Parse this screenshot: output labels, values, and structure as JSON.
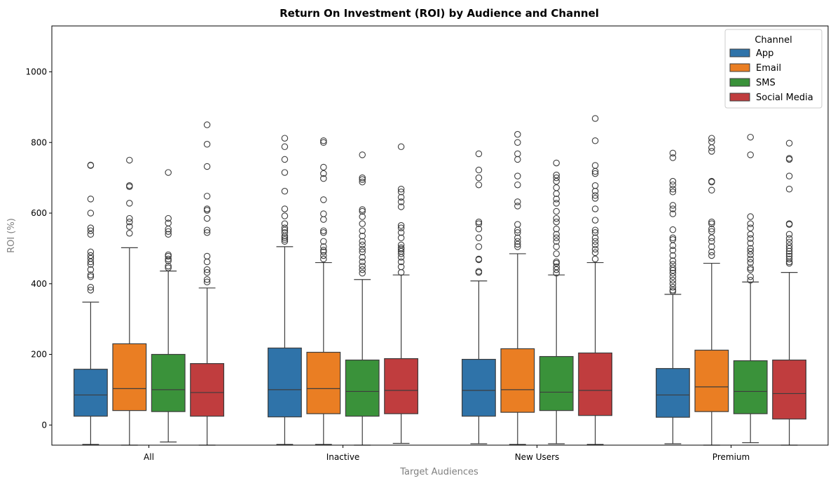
{
  "chart_data": {
    "type": "boxplot",
    "title": "Return On Investment (ROI) by Audience and Channel",
    "xlabel": "Target Audiences",
    "ylabel": "ROI (%)",
    "ylim": [
      -57,
      1130
    ],
    "yticks": [
      0,
      200,
      400,
      600,
      800,
      1000
    ],
    "categories": [
      "All",
      "Inactive",
      "New Users",
      "Premium"
    ],
    "legend": {
      "title": "Channel",
      "position": "top-right"
    },
    "series": [
      {
        "name": "App",
        "color": "#2f73a9",
        "boxes": [
          {
            "whisker_low": -55,
            "q1": 25,
            "median": 85,
            "q3": 158,
            "whisker_high": 348,
            "outliers": [
              382,
              390,
              420,
              425,
              440,
              455,
              462,
              472,
              480,
              490,
              540,
              550,
              558,
              600,
              640,
              735,
              736
            ]
          },
          {
            "whisker_low": -55,
            "q1": 23,
            "median": 100,
            "q3": 218,
            "whisker_high": 505,
            "outliers": [
              520,
              525,
              530,
              535,
              545,
              552,
              558,
              570,
              592,
              612,
              662,
              715,
              752,
              788,
              812
            ]
          },
          {
            "whisker_low": -53,
            "q1": 25,
            "median": 98,
            "q3": 186,
            "whisker_high": 408,
            "outliers": [
              432,
              435,
              468,
              470,
              505,
              530,
              555,
              570,
              575,
              680,
              700,
              722,
              768
            ]
          },
          {
            "whisker_low": -53,
            "q1": 22,
            "median": 85,
            "q3": 160,
            "whisker_high": 370,
            "outliers": [
              378,
              382,
              390,
              400,
              410,
              420,
              430,
              438,
              445,
              455,
              465,
              480,
              495,
              508,
              525,
              530,
              553,
              598,
              612,
              622,
              660,
              668,
              680,
              690,
              757,
              770
            ]
          }
        ]
      },
      {
        "name": "Email",
        "color": "#ea7e23",
        "boxes": [
          {
            "whisker_low": -57,
            "q1": 41,
            "median": 103,
            "q3": 230,
            "whisker_high": 502,
            "outliers": [
              543,
              562,
              575,
              585,
              628,
              675,
              678,
              750
            ]
          },
          {
            "whisker_low": -55,
            "q1": 32,
            "median": 103,
            "q3": 206,
            "whisker_high": 460,
            "outliers": [
              470,
              480,
              490,
              495,
              505,
              520,
              545,
              550,
              582,
              598,
              638,
              698,
              712,
              730,
              800,
              805
            ]
          },
          {
            "whisker_low": -55,
            "q1": 36,
            "median": 100,
            "q3": 216,
            "whisker_high": 485,
            "outliers": [
              505,
              512,
              520,
              530,
              545,
              552,
              568,
              620,
              632,
              680,
              705,
              752,
              768,
              800,
              823
            ]
          },
          {
            "whisker_low": -57,
            "q1": 38,
            "median": 108,
            "q3": 212,
            "whisker_high": 458,
            "outliers": [
              480,
              490,
              505,
              520,
              530,
              548,
              555,
              570,
              575,
              665,
              688,
              690,
              775,
              785,
              802,
              812
            ]
          }
        ]
      },
      {
        "name": "SMS",
        "color": "#3a923a",
        "boxes": [
          {
            "whisker_low": -48,
            "q1": 38,
            "median": 100,
            "q3": 200,
            "whisker_high": 436,
            "outliers": [
              445,
              450,
              465,
              470,
              478,
              482,
              540,
              548,
              555,
              572,
              585,
              715
            ]
          },
          {
            "whisker_low": -57,
            "q1": 25,
            "median": 95,
            "q3": 184,
            "whisker_high": 412,
            "outliers": [
              430,
              440,
              450,
              462,
              475,
              490,
              498,
              510,
              520,
              535,
              550,
              570,
              590,
              605,
              610,
              688,
              695,
              700,
              765
            ]
          },
          {
            "whisker_low": -53,
            "q1": 41,
            "median": 93,
            "q3": 194,
            "whisker_high": 425,
            "outliers": [
              430,
              440,
              448,
              458,
              462,
              485,
              505,
              520,
              530,
              540,
              555,
              575,
              585,
              605,
              628,
              640,
              655,
              672,
              690,
              700,
              708,
              742
            ]
          },
          {
            "whisker_low": -50,
            "q1": 32,
            "median": 95,
            "q3": 182,
            "whisker_high": 405,
            "outliers": [
              410,
              420,
              440,
              445,
              460,
              470,
              482,
              492,
              500,
              515,
              528,
              540,
              558,
              570,
              590,
              765,
              815
            ]
          }
        ]
      },
      {
        "name": "Social Media",
        "color": "#c03d3e",
        "boxes": [
          {
            "whisker_low": -57,
            "q1": 25,
            "median": 92,
            "q3": 174,
            "whisker_high": 388,
            "outliers": [
              405,
              412,
              432,
              440,
              462,
              478,
              545,
              552,
              585,
              608,
              612,
              648,
              732,
              795,
              850
            ]
          },
          {
            "whisker_low": -52,
            "q1": 32,
            "median": 98,
            "q3": 188,
            "whisker_high": 425,
            "outliers": [
              432,
              448,
              462,
              475,
              485,
              492,
              498,
              502,
              510,
              530,
              545,
              558,
              565,
              618,
              632,
              645,
              660,
              668,
              788
            ]
          },
          {
            "whisker_low": -55,
            "q1": 27,
            "median": 98,
            "q3": 204,
            "whisker_high": 460,
            "outliers": [
              470,
              488,
              498,
              510,
              520,
              530,
              545,
              552,
              580,
              612,
              642,
              650,
              662,
              678,
              712,
              718,
              735,
              805,
              868
            ]
          },
          {
            "whisker_low": -57,
            "q1": 17,
            "median": 89,
            "q3": 184,
            "whisker_high": 432,
            "outliers": [
              458,
              462,
              470,
              478,
              485,
              492,
              500,
              508,
              518,
              528,
              540,
              568,
              570,
              668,
              705,
              752,
              755,
              798
            ]
          }
        ]
      }
    ]
  }
}
